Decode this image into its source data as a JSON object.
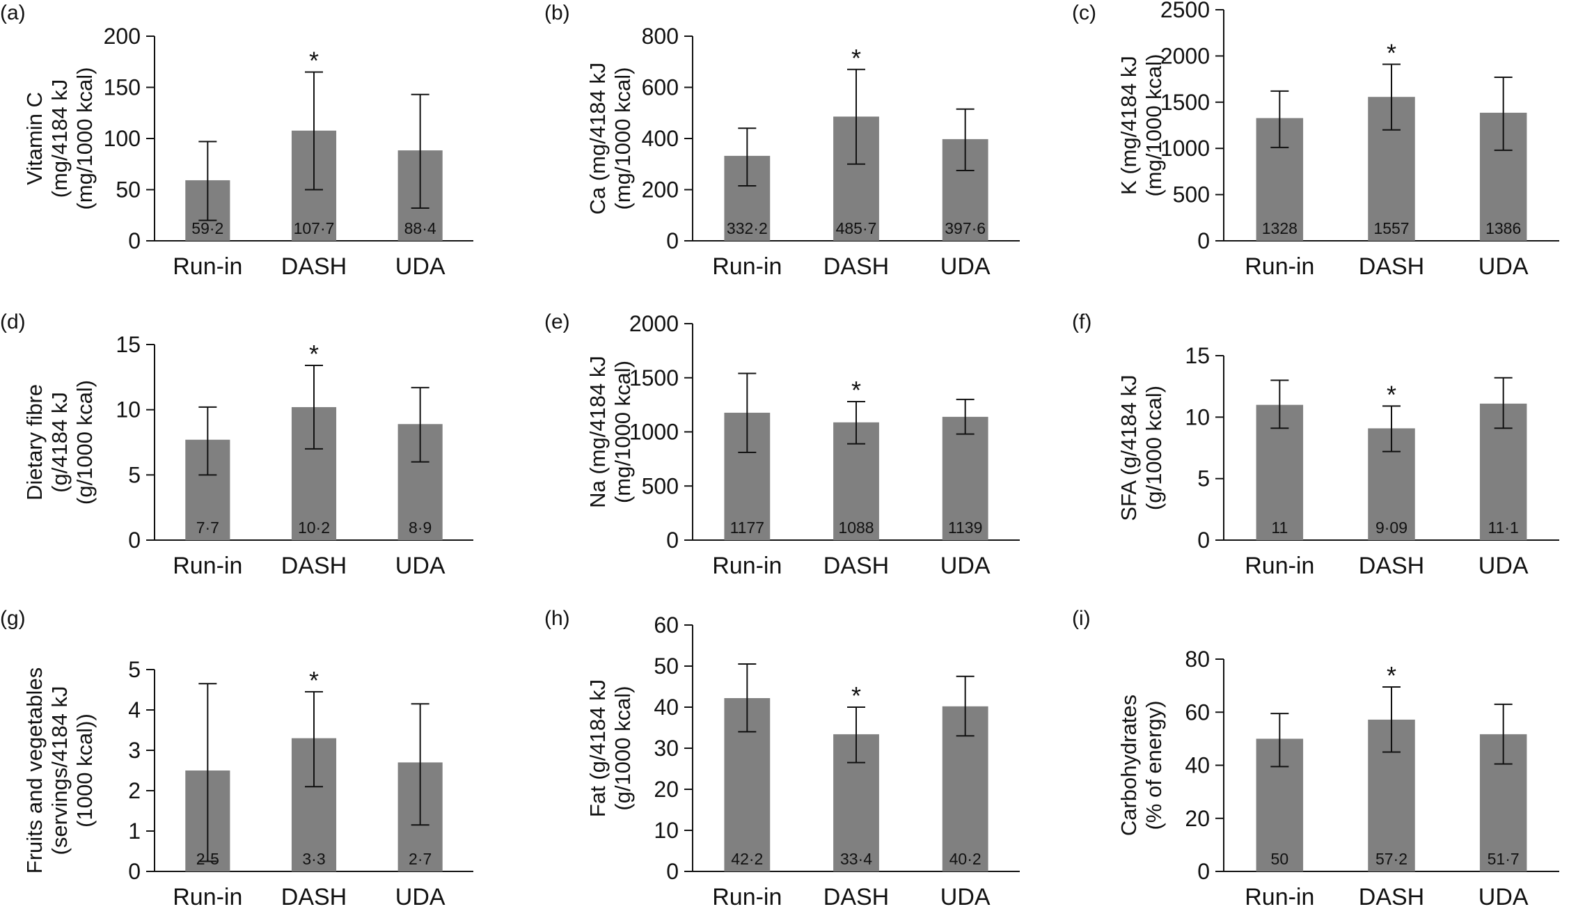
{
  "figure_title": "",
  "colors": {
    "bar": "#808080",
    "axis": "#111111",
    "text": "#111111"
  },
  "chart_data": [
    {
      "panel": "(a)",
      "type": "bar",
      "categories": [
        "Run-in",
        "DASH",
        "UDA"
      ],
      "values": [
        59.2,
        107.7,
        88.4
      ],
      "value_labels": [
        "59·2",
        "107·7",
        "88·4"
      ],
      "error_low": [
        20,
        50,
        32
      ],
      "error_high": [
        97,
        165,
        143
      ],
      "significant": [
        false,
        true,
        false
      ],
      "ylabel_lines": [
        "Vitamin C",
        "(mg/4184 kJ",
        "(mg/1000 kcal)"
      ],
      "ylim": [
        0,
        200
      ],
      "yticks": [
        0,
        50,
        100,
        150,
        200
      ],
      "ytick_labels": [
        "0",
        "50",
        "100",
        "150",
        "200"
      ]
    },
    {
      "panel": "(b)",
      "type": "bar",
      "categories": [
        "Run-in",
        "DASH",
        "UDA"
      ],
      "values": [
        332.2,
        485.7,
        397.6
      ],
      "value_labels": [
        "332·2",
        "485·7",
        "397·6"
      ],
      "error_low": [
        215,
        300,
        275
      ],
      "error_high": [
        440,
        670,
        515
      ],
      "significant": [
        false,
        true,
        false
      ],
      "ylabel_lines": [
        "Ca (mg/4184 kJ",
        "(mg/1000 kcal)"
      ],
      "ylim": [
        0,
        800
      ],
      "yticks": [
        0,
        200,
        400,
        600,
        800
      ],
      "ytick_labels": [
        "0",
        "200",
        "400",
        "600",
        "800"
      ]
    },
    {
      "panel": "(c)",
      "type": "bar",
      "categories": [
        "Run-in",
        "DASH",
        "UDA"
      ],
      "values": [
        1328,
        1557,
        1386
      ],
      "value_labels": [
        "1328",
        "1557",
        "1386"
      ],
      "error_low": [
        1010,
        1200,
        980
      ],
      "error_high": [
        1620,
        1910,
        1770
      ],
      "significant": [
        false,
        true,
        false
      ],
      "ylabel_lines": [
        "K (mg/4184 kJ",
        "(mg/1000 kcal)"
      ],
      "ylim": [
        0,
        2500
      ],
      "yticks": [
        0,
        500,
        1000,
        1500,
        2000,
        2500
      ],
      "ytick_labels": [
        "0",
        "500",
        "1000",
        "1500",
        "2000",
        "2500"
      ]
    },
    {
      "panel": "(d)",
      "type": "bar",
      "categories": [
        "Run-in",
        "DASH",
        "UDA"
      ],
      "values": [
        7.7,
        10.2,
        8.9
      ],
      "value_labels": [
        "7·7",
        "10·2",
        "8·9"
      ],
      "error_low": [
        5,
        7,
        6
      ],
      "error_high": [
        10.2,
        13.4,
        11.7
      ],
      "significant": [
        false,
        true,
        false
      ],
      "ylabel_lines": [
        "Dietary fibre",
        "(g/4184 kJ",
        "(g/1000 kcal)"
      ],
      "ylim": [
        0,
        15
      ],
      "yticks": [
        0,
        5,
        10,
        15
      ],
      "ytick_labels": [
        "0",
        "5",
        "10",
        "15"
      ]
    },
    {
      "panel": "(e)",
      "type": "bar",
      "categories": [
        "Run-in",
        "DASH",
        "UDA"
      ],
      "values": [
        1177,
        1088,
        1139
      ],
      "value_labels": [
        "1177",
        "1088",
        "1139"
      ],
      "error_low": [
        810,
        890,
        980
      ],
      "error_high": [
        1540,
        1280,
        1300
      ],
      "significant": [
        false,
        true,
        false
      ],
      "ylabel_lines": [
        "Na (mg/4184 kJ",
        "(mg/1000 kcal)"
      ],
      "ylim": [
        0,
        2000
      ],
      "yticks": [
        0,
        500,
        1000,
        1500,
        2000
      ],
      "ytick_labels": [
        "0",
        "500",
        "1000",
        "1500",
        "2000"
      ]
    },
    {
      "panel": "(f)",
      "type": "bar",
      "categories": [
        "Run-in",
        "DASH",
        "UDA"
      ],
      "values": [
        11,
        9.09,
        11.1
      ],
      "value_labels": [
        "11",
        "9·09",
        "11·1"
      ],
      "error_low": [
        9.1,
        7.2,
        9.1
      ],
      "error_high": [
        13,
        10.9,
        13.2
      ],
      "significant": [
        false,
        true,
        false
      ],
      "ylabel_lines": [
        "SFA (g/4184 kJ",
        "(g/1000 kcal)"
      ],
      "ylim": [
        0,
        15
      ],
      "yticks": [
        0,
        5,
        10,
        15
      ],
      "ytick_labels": [
        "0",
        "5",
        "10",
        "15"
      ]
    },
    {
      "panel": "(g)",
      "type": "bar",
      "categories": [
        "Run-in",
        "DASH",
        "UDA"
      ],
      "values": [
        2.5,
        3.3,
        2.7
      ],
      "value_labels": [
        "2·5",
        "3·3",
        "2·7"
      ],
      "error_low": [
        0.25,
        2.1,
        1.15
      ],
      "error_high": [
        4.65,
        4.45,
        4.15
      ],
      "significant": [
        false,
        true,
        false
      ],
      "ylabel_lines": [
        "Fruits and vegetables",
        "(servings/4184 kJ",
        "(1000 kcal))"
      ],
      "ylim": [
        0,
        5
      ],
      "yticks": [
        0,
        1,
        2,
        3,
        4,
        5
      ],
      "ytick_labels": [
        "0",
        "1",
        "2",
        "3",
        "4",
        "5"
      ]
    },
    {
      "panel": "(h)",
      "type": "bar",
      "categories": [
        "Run-in",
        "DASH",
        "UDA"
      ],
      "values": [
        42.2,
        33.4,
        40.2
      ],
      "value_labels": [
        "42·2",
        "33·4",
        "40·2"
      ],
      "error_low": [
        34,
        26.5,
        33
      ],
      "error_high": [
        50.5,
        40,
        47.5
      ],
      "significant": [
        false,
        true,
        false
      ],
      "ylabel_lines": [
        "Fat (g/4184 kJ",
        "(g/1000 kcal)"
      ],
      "ylim": [
        0,
        60
      ],
      "yticks": [
        0,
        10,
        20,
        30,
        40,
        50,
        60
      ],
      "ytick_labels": [
        "0",
        "10",
        "20",
        "30",
        "40",
        "50",
        "60"
      ]
    },
    {
      "panel": "(i)",
      "type": "bar",
      "categories": [
        "Run-in",
        "DASH",
        "UDA"
      ],
      "values": [
        50,
        57.2,
        51.7
      ],
      "value_labels": [
        "50",
        "57·2",
        "51·7"
      ],
      "error_low": [
        39.5,
        45,
        40.5
      ],
      "error_high": [
        59.5,
        69.5,
        63
      ],
      "significant": [
        false,
        true,
        false
      ],
      "ylabel_lines": [
        "Carbohydrates",
        "(% of energy)"
      ],
      "ylim": [
        0,
        80
      ],
      "yticks": [
        0,
        20,
        40,
        60,
        80
      ],
      "ytick_labels": [
        "0",
        "20",
        "40",
        "60",
        "80"
      ]
    }
  ]
}
